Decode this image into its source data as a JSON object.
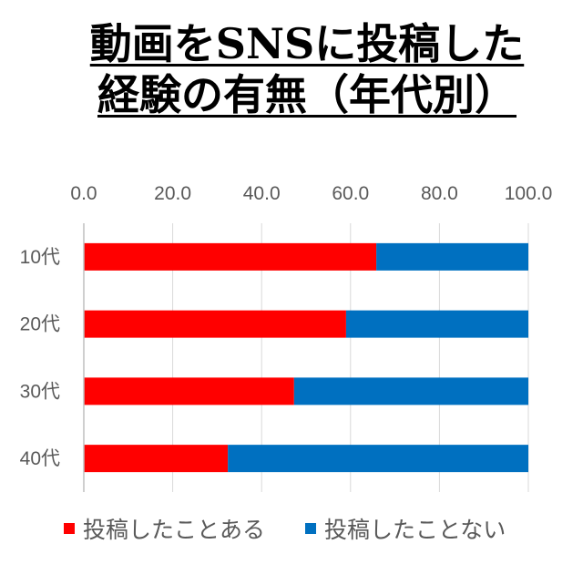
{
  "chart_data": {
    "type": "bar",
    "orientation": "horizontal",
    "stacked": true,
    "title_lines": [
      "動画をSNSに投稿した",
      "経験の有無（年代別）"
    ],
    "categories": [
      "10代",
      "20代",
      "30代",
      "40代"
    ],
    "series": [
      {
        "name": "投稿したことある",
        "color": "#FF0000",
        "values": [
          65.8,
          59.0,
          47.3,
          32.4
        ]
      },
      {
        "name": "投稿したことない",
        "color": "#0070C0",
        "values": [
          34.2,
          41.0,
          52.7,
          67.6
        ]
      }
    ],
    "xlim": [
      0,
      100
    ],
    "xticks": [
      "0.0",
      "20.0",
      "40.0",
      "60.0",
      "80.0",
      "100.0"
    ],
    "x_axis_position": "top",
    "grid": true,
    "legend_position": "bottom"
  }
}
